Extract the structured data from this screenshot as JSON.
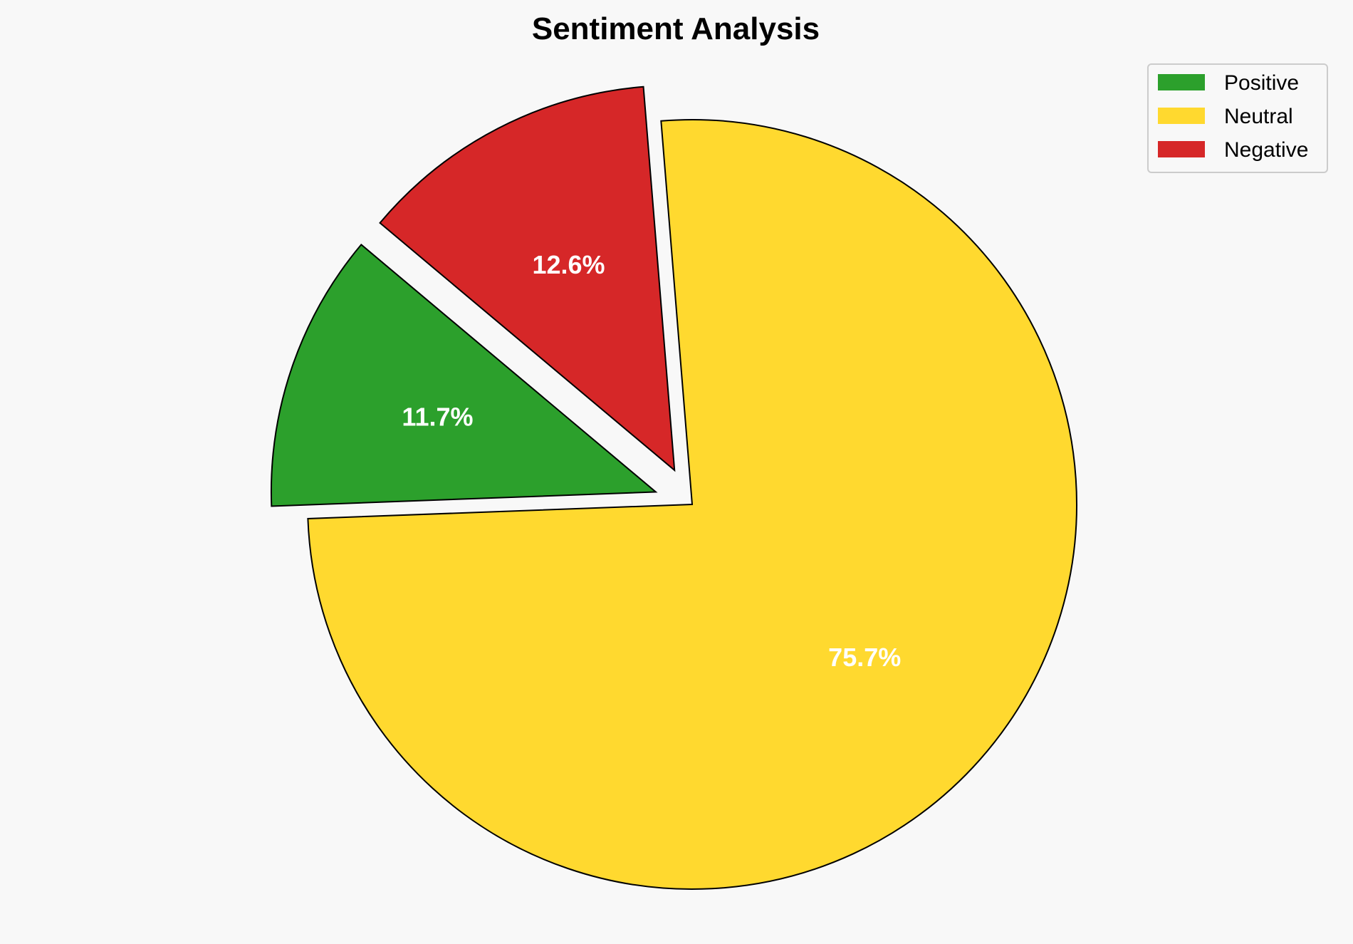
{
  "chart_data": {
    "type": "pie",
    "title": "Sentiment Analysis",
    "categories": [
      "Positive",
      "Neutral",
      "Negative"
    ],
    "values": [
      11.7,
      75.7,
      12.6
    ],
    "labels": [
      "11.7%",
      "75.7%",
      "12.6%"
    ],
    "colors": [
      "#2ca02c",
      "#ffd92f",
      "#d62728"
    ],
    "explode": [
      0.1,
      0,
      0.1
    ],
    "start_angle_deg": 140,
    "edge_color": "#000000",
    "legend": {
      "placement": "top-right",
      "entries": [
        "Positive",
        "Neutral",
        "Negative"
      ]
    }
  }
}
